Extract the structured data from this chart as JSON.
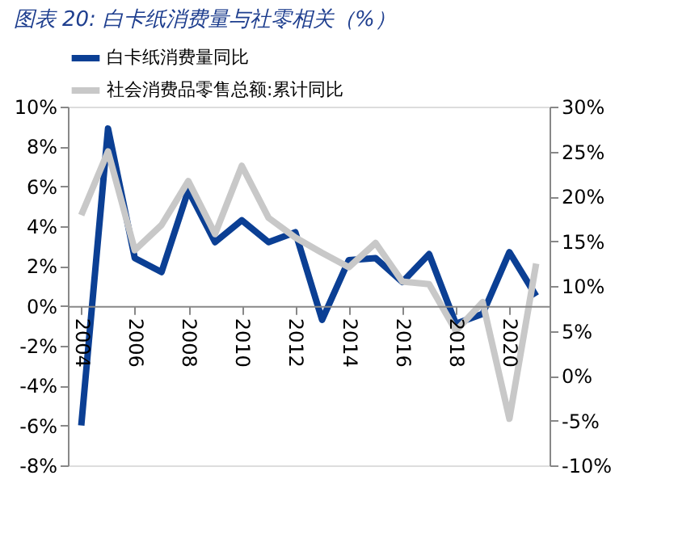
{
  "chart_data": {
    "type": "line",
    "title": "图表 20:  白卡纸消费量与社零相关（%）",
    "x": [
      2004,
      2005,
      2006,
      2007,
      2008,
      2009,
      2010,
      2011,
      2012,
      2013,
      2014,
      2015,
      2016,
      2017,
      2018,
      2019,
      2020,
      2021
    ],
    "xlim": [
      2003.5,
      2021.5
    ],
    "xticks": [
      2004,
      2006,
      2008,
      2010,
      2012,
      2014,
      2016,
      2018,
      2020
    ],
    "ylim": [
      -8,
      10
    ],
    "yticks": [
      {
        "value": -8,
        "label": "-8%"
      },
      {
        "value": -6,
        "label": "-6%"
      },
      {
        "value": -4,
        "label": "-4%"
      },
      {
        "value": -2,
        "label": "-2%"
      },
      {
        "value": 0,
        "label": "0%"
      },
      {
        "value": 2,
        "label": "2%"
      },
      {
        "value": 4,
        "label": "4%"
      },
      {
        "value": 6,
        "label": "6%"
      },
      {
        "value": 8,
        "label": "8%"
      },
      {
        "value": 10,
        "label": "10%"
      }
    ],
    "y2lim": [
      -10,
      30
    ],
    "y2ticks": [
      {
        "value": -10,
        "label": "-10%"
      },
      {
        "value": -5,
        "label": "-5%"
      },
      {
        "value": 0,
        "label": "0%"
      },
      {
        "value": 5,
        "label": "5%"
      },
      {
        "value": 10,
        "label": "10%"
      },
      {
        "value": 15,
        "label": "15%"
      },
      {
        "value": 20,
        "label": "20%"
      },
      {
        "value": 25,
        "label": "25%"
      },
      {
        "value": 30,
        "label": "30%"
      }
    ],
    "series": [
      {
        "name": "白卡纸消费量同比",
        "color": "#0b3f94",
        "values": [
          -6.0,
          8.9,
          2.4,
          1.7,
          5.8,
          3.2,
          4.3,
          3.2,
          3.7,
          -0.7,
          2.3,
          2.4,
          1.2,
          2.6,
          -0.9,
          -0.4,
          2.7,
          0.5
        ]
      },
      {
        "name": "社会消费品零售总额:累计同比",
        "color": "#c8c8c8",
        "axis": "y2",
        "values": [
          17.9,
          25.0,
          14.0,
          16.8,
          21.7,
          15.8,
          23.4,
          17.6,
          15.4,
          13.7,
          12.1,
          14.8,
          10.5,
          10.2,
          5.0,
          8.2,
          -4.8,
          12.5
        ]
      }
    ],
    "legend": "top",
    "grid": false,
    "marker": "none",
    "line_style": "solid"
  }
}
